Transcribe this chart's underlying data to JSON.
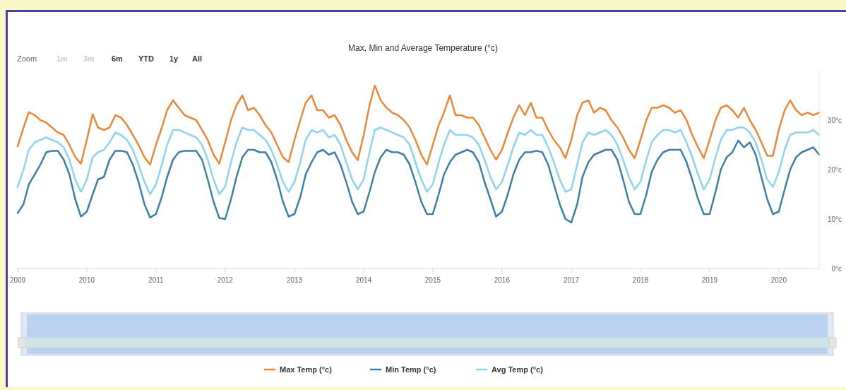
{
  "chart_data": {
    "type": "line",
    "title": "Max, Min and Average Temperature (°c)",
    "annotations": [
      "Zoom",
      "1m",
      "3m",
      "6m",
      "YTD",
      "1y",
      "All"
    ],
    "x": [
      "2009-01",
      "2009-02",
      "2009-03",
      "2009-04",
      "2009-05",
      "2009-06",
      "2009-07",
      "2009-08",
      "2009-09",
      "2009-10",
      "2009-11",
      "2009-12",
      "2010-01",
      "2010-02",
      "2010-03",
      "2010-04",
      "2010-05",
      "2010-06",
      "2010-07",
      "2010-08",
      "2010-09",
      "2010-10",
      "2010-11",
      "2010-12",
      "2011-01",
      "2011-02",
      "2011-03",
      "2011-04",
      "2011-05",
      "2011-06",
      "2011-07",
      "2011-08",
      "2011-09",
      "2011-10",
      "2011-11",
      "2011-12",
      "2012-01",
      "2012-02",
      "2012-03",
      "2012-04",
      "2012-05",
      "2012-06",
      "2012-07",
      "2012-08",
      "2012-09",
      "2012-10",
      "2012-11",
      "2012-12",
      "2013-01",
      "2013-02",
      "2013-03",
      "2013-04",
      "2013-05",
      "2013-06",
      "2013-07",
      "2013-08",
      "2013-09",
      "2013-10",
      "2013-11",
      "2013-12",
      "2014-01",
      "2014-02",
      "2014-03",
      "2014-04",
      "2014-05",
      "2014-06",
      "2014-07",
      "2014-08",
      "2014-09",
      "2014-10",
      "2014-11",
      "2014-12",
      "2015-01",
      "2015-02",
      "2015-03",
      "2015-04",
      "2015-05",
      "2015-06",
      "2015-07",
      "2015-08",
      "2015-09",
      "2015-10",
      "2015-11",
      "2015-12",
      "2016-01",
      "2016-02",
      "2016-03",
      "2016-04",
      "2016-05",
      "2016-06",
      "2016-07",
      "2016-08",
      "2016-09",
      "2016-10",
      "2016-11",
      "2016-12",
      "2017-01",
      "2017-02",
      "2017-03",
      "2017-04",
      "2017-05",
      "2017-06",
      "2017-07",
      "2017-08",
      "2017-09",
      "2017-10",
      "2017-11",
      "2017-12",
      "2018-01",
      "2018-02",
      "2018-03",
      "2018-04",
      "2018-05",
      "2018-06",
      "2018-07",
      "2018-08",
      "2018-09",
      "2018-10",
      "2018-11",
      "2018-12",
      "2019-01",
      "2019-02",
      "2019-03",
      "2019-04",
      "2019-05",
      "2019-06",
      "2019-07",
      "2019-08",
      "2019-09",
      "2019-10",
      "2019-11",
      "2019-12",
      "2020-01",
      "2020-02",
      "2020-03",
      "2020-04",
      "2020-05",
      "2020-06",
      "2020-07",
      "2020-08"
    ],
    "series": [
      {
        "name": "Max Temp (°c)",
        "color": "#e8883a",
        "values": [
          24.7,
          28.5,
          31.6,
          31.0,
          30.0,
          29.5,
          28.5,
          27.5,
          27.0,
          25.0,
          22.5,
          21.2,
          26.0,
          31.2,
          28.5,
          28.0,
          28.5,
          31.0,
          30.5,
          29.0,
          27.0,
          25.0,
          22.5,
          21.0,
          25.0,
          28.5,
          32.0,
          34.0,
          32.5,
          31.0,
          30.5,
          30.0,
          28.0,
          26.0,
          23.0,
          21.2,
          25.5,
          30.0,
          33.0,
          35.0,
          32.0,
          32.5,
          31.0,
          29.0,
          27.5,
          25.0,
          22.5,
          21.5,
          26.0,
          30.0,
          33.5,
          35.0,
          32.0,
          32.0,
          30.5,
          31.0,
          29.0,
          26.0,
          23.5,
          21.9,
          27.0,
          33.0,
          37.0,
          34.0,
          32.5,
          31.5,
          31.0,
          30.0,
          28.5,
          26.0,
          23.0,
          21.0,
          25.0,
          29.0,
          31.5,
          35.0,
          31.0,
          31.0,
          30.5,
          30.5,
          29.0,
          26.5,
          24.0,
          22.0,
          24.0,
          27.5,
          30.5,
          33.0,
          31.0,
          33.5,
          30.5,
          30.5,
          28.0,
          26.0,
          24.5,
          22.3,
          26.0,
          31.0,
          33.5,
          34.0,
          31.5,
          32.5,
          32.0,
          30.0,
          28.5,
          26.5,
          24.0,
          22.3,
          26.0,
          30.0,
          32.5,
          32.5,
          33.0,
          32.5,
          31.5,
          32.0,
          30.0,
          27.0,
          24.5,
          22.3,
          26.0,
          30.0,
          32.5,
          33.0,
          32.0,
          30.5,
          32.5,
          30.0,
          28.0,
          25.5,
          22.8,
          22.8,
          28.0,
          32.0,
          34.0,
          32.0,
          31.0,
          31.5,
          31.0,
          31.5
        ]
      },
      {
        "name": "Min Temp (°c)",
        "color": "#3f7fa6",
        "values": [
          11.2,
          13.0,
          17.0,
          19.0,
          21.0,
          23.5,
          23.8,
          23.8,
          22.0,
          19.0,
          14.0,
          10.5,
          11.5,
          15.0,
          18.0,
          18.5,
          22.0,
          23.8,
          23.8,
          23.5,
          21.0,
          17.5,
          13.0,
          10.3,
          11.0,
          14.5,
          18.5,
          22.0,
          23.5,
          23.8,
          23.8,
          23.8,
          22.0,
          18.0,
          13.5,
          10.2,
          10.0,
          14.0,
          18.5,
          22.5,
          24.0,
          24.0,
          23.5,
          23.5,
          21.5,
          18.0,
          13.5,
          10.5,
          11.0,
          14.5,
          19.0,
          21.5,
          23.5,
          24.0,
          23.0,
          23.5,
          21.0,
          17.5,
          13.5,
          11.0,
          11.5,
          15.5,
          19.5,
          22.5,
          24.0,
          23.5,
          23.5,
          23.0,
          21.0,
          17.5,
          13.5,
          11.0,
          11.0,
          15.0,
          19.0,
          21.5,
          23.0,
          23.5,
          24.0,
          23.5,
          21.5,
          17.5,
          14.0,
          10.5,
          11.5,
          15.0,
          19.0,
          22.0,
          23.5,
          23.5,
          23.8,
          23.5,
          21.0,
          17.0,
          13.0,
          10.0,
          9.3,
          13.0,
          18.5,
          21.5,
          23.0,
          23.5,
          24.0,
          24.0,
          22.0,
          18.0,
          13.5,
          11.0,
          11.0,
          15.0,
          19.5,
          22.0,
          23.5,
          24.0,
          24.0,
          24.0,
          21.5,
          18.0,
          14.0,
          11.0,
          11.0,
          15.5,
          20.0,
          22.5,
          23.5,
          25.9,
          24.5,
          25.5,
          23.0,
          18.5,
          14.0,
          11.0,
          11.5,
          16.0,
          20.0,
          22.5,
          23.5,
          24.0,
          24.5,
          23.0
        ]
      },
      {
        "name": "Avg Temp (°c)",
        "color": "#8fd3f0",
        "values": [
          16.5,
          20.0,
          24.0,
          25.5,
          26.0,
          26.5,
          26.0,
          25.5,
          24.5,
          22.0,
          18.0,
          15.5,
          18.0,
          22.5,
          23.5,
          24.0,
          25.5,
          27.5,
          27.0,
          26.0,
          24.0,
          21.0,
          17.5,
          15.0,
          17.0,
          21.0,
          25.0,
          28.0,
          28.0,
          27.5,
          27.0,
          26.5,
          25.0,
          22.0,
          18.0,
          15.0,
          16.5,
          21.5,
          25.5,
          28.5,
          28.0,
          28.0,
          27.0,
          26.0,
          24.0,
          21.0,
          17.5,
          15.5,
          17.5,
          21.5,
          26.0,
          28.0,
          27.5,
          28.0,
          26.5,
          27.0,
          25.0,
          21.5,
          18.0,
          16.0,
          18.0,
          23.5,
          28.0,
          28.5,
          28.0,
          27.5,
          27.0,
          26.5,
          25.0,
          21.5,
          18.0,
          15.5,
          17.0,
          21.5,
          25.0,
          28.0,
          27.0,
          27.0,
          27.0,
          26.5,
          25.0,
          22.0,
          18.5,
          16.0,
          17.5,
          21.0,
          24.5,
          27.5,
          27.0,
          28.0,
          27.0,
          27.0,
          24.5,
          21.5,
          18.0,
          15.5,
          16.0,
          21.0,
          25.5,
          27.5,
          27.0,
          27.5,
          28.0,
          27.0,
          25.0,
          22.0,
          18.5,
          16.0,
          17.5,
          22.0,
          25.5,
          27.0,
          28.0,
          28.0,
          27.5,
          28.0,
          25.5,
          22.5,
          19.0,
          16.0,
          18.0,
          22.5,
          26.0,
          28.0,
          28.0,
          28.5,
          28.5,
          27.5,
          25.5,
          22.0,
          18.0,
          16.5,
          19.5,
          24.0,
          27.0,
          27.5,
          27.5,
          27.5,
          28.0,
          27.0
        ]
      }
    ],
    "xlim": [
      "2009-01",
      "2020-08"
    ],
    "xticks": [
      {
        "value": "2009",
        "label": "2009"
      },
      {
        "value": "2010",
        "label": "2010"
      },
      {
        "value": "2011",
        "label": "2011"
      },
      {
        "value": "2012",
        "label": "2012"
      },
      {
        "value": "2013",
        "label": "2013"
      },
      {
        "value": "2014",
        "label": "2014"
      },
      {
        "value": "2015",
        "label": "2015"
      },
      {
        "value": "2016",
        "label": "2016"
      },
      {
        "value": "2017",
        "label": "2017"
      },
      {
        "value": "2018",
        "label": "2018"
      },
      {
        "value": "2019",
        "label": "2019"
      },
      {
        "value": "2020",
        "label": "2020"
      }
    ],
    "ylim": [
      0,
      40
    ],
    "yticks": [
      {
        "value": 0,
        "label": "0°c"
      },
      {
        "value": 10,
        "label": "10°c"
      },
      {
        "value": 20,
        "label": "20°c"
      },
      {
        "value": 30,
        "label": "30°c"
      }
    ],
    "legend": "bottom",
    "marker": "none",
    "line_style": "solid"
  }
}
